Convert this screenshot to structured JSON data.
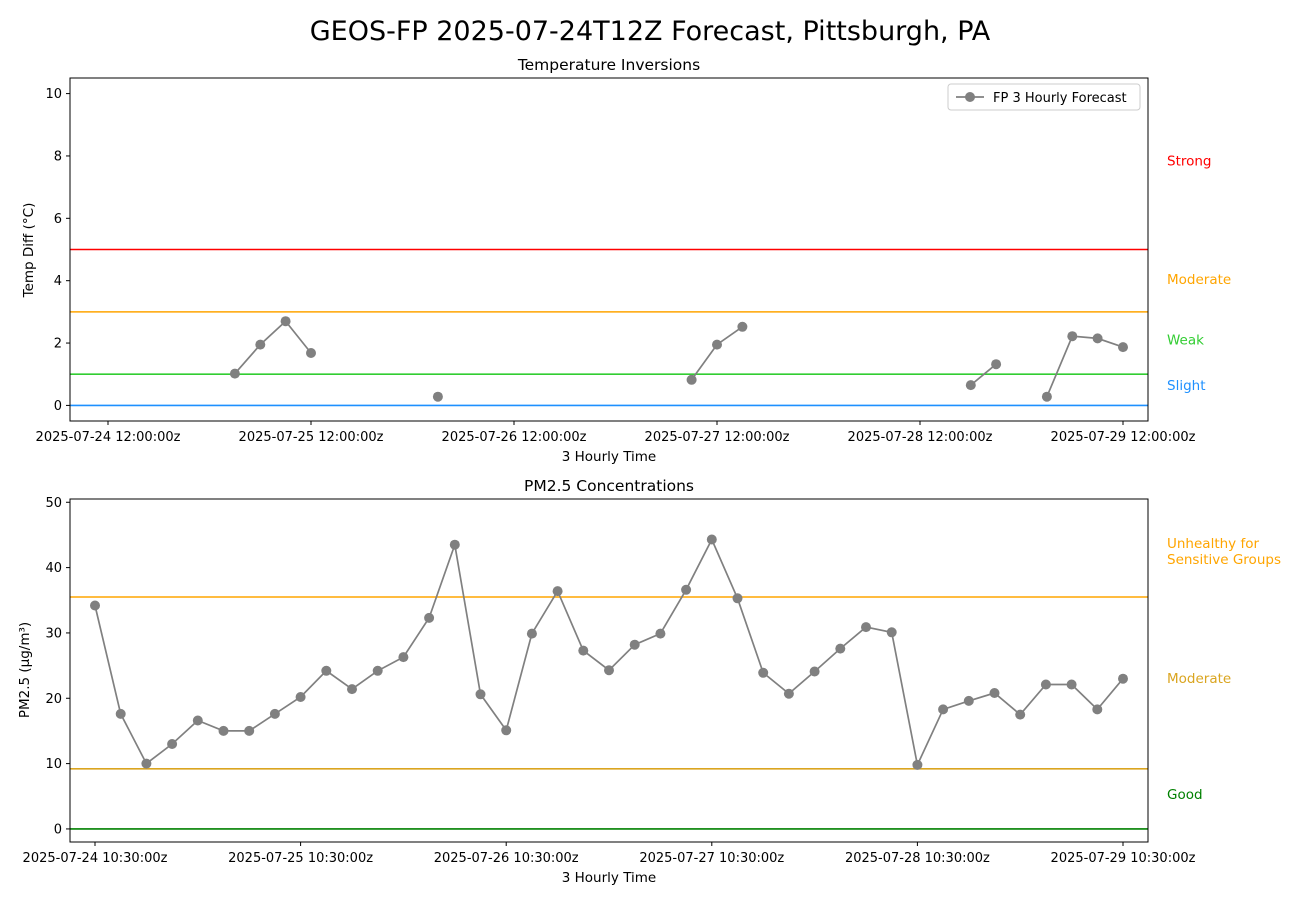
{
  "suptitle": "GEOS-FP 2025-07-24T12Z Forecast, Pittsburgh, PA",
  "chart_data": [
    {
      "type": "line",
      "title": "Temperature Inversions",
      "xlabel": "3 Hourly Time",
      "ylabel": "Temp Diff (°C)",
      "ylim": [
        -0.5,
        10.5
      ],
      "y_ticks": [
        0,
        2,
        4,
        6,
        8,
        10
      ],
      "x_tick_labels": [
        "2025-07-24 12:00:00z",
        "2025-07-25 12:00:00z",
        "2025-07-26 12:00:00z",
        "2025-07-27 12:00:00z",
        "2025-07-28 12:00:00z",
        "2025-07-29 12:00:00z"
      ],
      "grid": false,
      "legend": {
        "placement": "top-right",
        "entries": [
          "FP 3 Hourly Forecast"
        ]
      },
      "series": [
        {
          "name": "FP 3 Hourly Forecast",
          "color": "#808080",
          "segments": [
            [
              [
                "2025-07-25 03:00:00z",
                1.02
              ],
              [
                "2025-07-25 06:00:00z",
                1.95
              ],
              [
                "2025-07-25 09:00:00z",
                2.7
              ],
              [
                "2025-07-25 12:00:00z",
                1.68
              ]
            ],
            [
              [
                "2025-07-26 03:00:00z",
                0.28
              ]
            ],
            [
              [
                "2025-07-27 09:00:00z",
                0.82
              ],
              [
                "2025-07-27 12:00:00z",
                1.95
              ],
              [
                "2025-07-27 15:00:00z",
                2.52
              ]
            ],
            [
              [
                "2025-07-28 18:00:00z",
                0.65
              ],
              [
                "2025-07-28 21:00:00z",
                1.32
              ]
            ],
            [
              [
                "2025-07-29 03:00:00z",
                0.28
              ],
              [
                "2025-07-29 06:00:00z",
                2.22
              ],
              [
                "2025-07-29 09:00:00z",
                2.15
              ],
              [
                "2025-07-29 12:00:00z",
                1.87
              ]
            ]
          ]
        }
      ],
      "thresholds": [
        {
          "value": 0,
          "color": "#1E90FF"
        },
        {
          "value": 1,
          "color": "#32CD32"
        },
        {
          "value": 3,
          "color": "#FFA500"
        },
        {
          "value": 5,
          "color": "#FF0000"
        }
      ],
      "category_labels": [
        {
          "label": "Strong",
          "value": 7.7,
          "color": "#FF0000"
        },
        {
          "label": "Moderate",
          "value": 3.9,
          "color": "#FFA500"
        },
        {
          "label": "Weak",
          "value": 1.95,
          "color": "#32CD32"
        },
        {
          "label": "Slight",
          "value": 0.5,
          "color": "#1E90FF"
        }
      ]
    },
    {
      "type": "line",
      "title": "PM2.5 Concentrations",
      "xlabel": "3 Hourly Time",
      "ylabel": "PM2.5 (µg/m³)",
      "ylim": [
        -2,
        50.5
      ],
      "y_ticks": [
        0,
        10,
        20,
        30,
        40,
        50
      ],
      "x_tick_labels": [
        "2025-07-24 10:30:00z",
        "2025-07-25 10:30:00z",
        "2025-07-26 10:30:00z",
        "2025-07-27 10:30:00z",
        "2025-07-28 10:30:00z",
        "2025-07-29 10:30:00z"
      ],
      "grid": false,
      "series": [
        {
          "color": "#808080",
          "x": [
            "2025-07-24 10:30:00z",
            "2025-07-24 13:30:00z",
            "2025-07-24 16:30:00z",
            "2025-07-24 19:30:00z",
            "2025-07-24 22:30:00z",
            "2025-07-25 01:30:00z",
            "2025-07-25 04:30:00z",
            "2025-07-25 07:30:00z",
            "2025-07-25 10:30:00z",
            "2025-07-25 13:30:00z",
            "2025-07-25 16:30:00z",
            "2025-07-25 19:30:00z",
            "2025-07-25 22:30:00z",
            "2025-07-26 01:30:00z",
            "2025-07-26 04:30:00z",
            "2025-07-26 07:30:00z",
            "2025-07-26 10:30:00z",
            "2025-07-26 13:30:00z",
            "2025-07-26 16:30:00z",
            "2025-07-26 19:30:00z",
            "2025-07-26 22:30:00z",
            "2025-07-27 01:30:00z",
            "2025-07-27 04:30:00z",
            "2025-07-27 07:30:00z",
            "2025-07-27 10:30:00z",
            "2025-07-27 13:30:00z",
            "2025-07-27 16:30:00z",
            "2025-07-27 19:30:00z",
            "2025-07-27 22:30:00z",
            "2025-07-28 01:30:00z",
            "2025-07-28 04:30:00z",
            "2025-07-28 07:30:00z",
            "2025-07-28 10:30:00z",
            "2025-07-28 13:30:00z",
            "2025-07-28 16:30:00z",
            "2025-07-28 19:30:00z",
            "2025-07-28 22:30:00z",
            "2025-07-29 01:30:00z",
            "2025-07-29 04:30:00z",
            "2025-07-29 07:30:00z",
            "2025-07-29 10:30:00z"
          ],
          "values": [
            34.2,
            17.6,
            10.0,
            13.0,
            16.6,
            15.0,
            15.0,
            17.6,
            20.2,
            24.2,
            21.4,
            24.2,
            26.3,
            32.3,
            43.5,
            20.6,
            15.1,
            29.9,
            36.4,
            27.3,
            24.3,
            28.2,
            29.9,
            36.6,
            44.3,
            35.3,
            23.9,
            20.7,
            24.1,
            27.6,
            30.9,
            30.1,
            9.8,
            18.3,
            19.6,
            20.8,
            17.5,
            22.1,
            22.1,
            18.3,
            23.0
          ]
        }
      ],
      "thresholds": [
        {
          "value": 0,
          "color": "#008000"
        },
        {
          "value": 9.2,
          "color": "#DAA520"
        },
        {
          "value": 35.5,
          "color": "#FFA500"
        }
      ],
      "category_labels": [
        {
          "label": "Unhealthy for\nSensitive Groups",
          "value": 43,
          "color": "#FFA500"
        },
        {
          "label": "Moderate",
          "value": 22.3,
          "color": "#DAA520"
        },
        {
          "label": "Good",
          "value": 4.6,
          "color": "#008000"
        }
      ]
    }
  ]
}
